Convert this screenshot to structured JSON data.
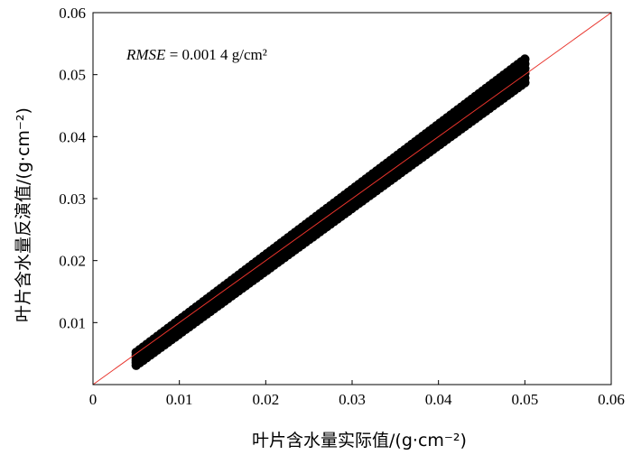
{
  "chart_data": {
    "type": "scatter",
    "title": "",
    "xlabel": "叶片含水量实际值/(g·cm⁻²)",
    "ylabel": "叶片含水量反演值/(g·cm⁻²)",
    "xlim": [
      0,
      0.06
    ],
    "ylim": [
      0,
      0.06
    ],
    "x_ticks": [
      "0",
      "0.01",
      "0.02",
      "0.03",
      "0.04",
      "0.05",
      "0.06"
    ],
    "y_ticks": [
      "0.01",
      "0.02",
      "0.03",
      "0.04",
      "0.05",
      "0.06"
    ],
    "annotation": {
      "prefix": "RMSE",
      "text": " = 0.001 4 g/cm²"
    },
    "series": [
      {
        "kind": "scatter",
        "marker_color": "#000000",
        "x_range": [
          0.005,
          0.05
        ],
        "band_lower": {
          "x": [
            0.005,
            0.05
          ],
          "y": [
            0.0031,
            0.0487
          ]
        },
        "band_upper": {
          "x": [
            0.005,
            0.05
          ],
          "y": [
            0.0052,
            0.0525
          ]
        }
      },
      {
        "kind": "line",
        "color": "#e8332b",
        "x": [
          0,
          0.06
        ],
        "y": [
          0,
          0.06
        ]
      }
    ],
    "grid": false,
    "legend": "none"
  }
}
